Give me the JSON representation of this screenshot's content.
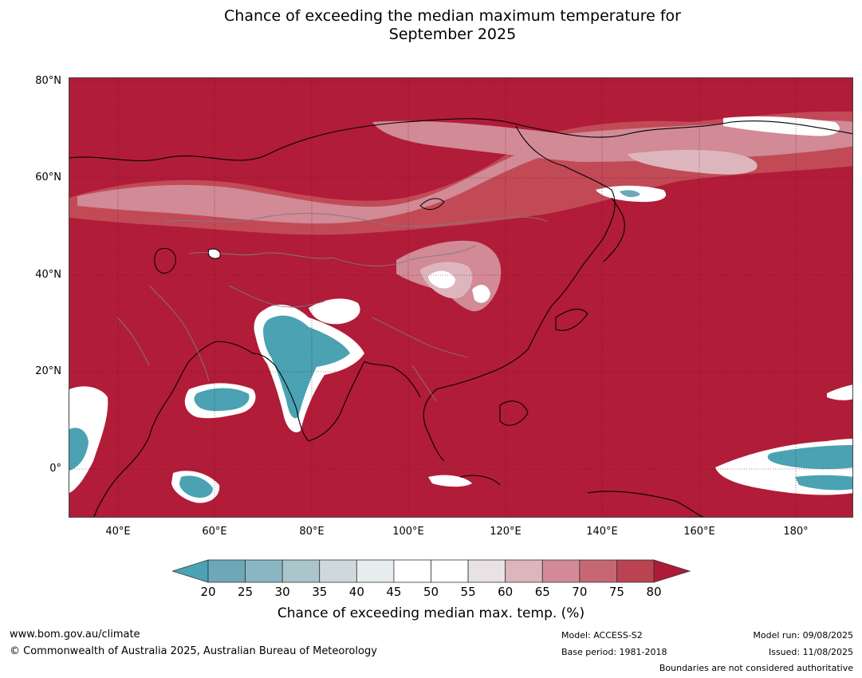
{
  "title_line1": "Chance of exceeding the median maximum temperature for",
  "title_line2": "September 2025",
  "map": {
    "lat_labels": [
      "80°N",
      "60°N",
      "40°N",
      "20°N",
      "0°"
    ],
    "lon_labels": [
      "40°E",
      "60°E",
      "80°E",
      "100°E",
      "120°E",
      "140°E",
      "160°E",
      "180°"
    ],
    "lon_range": [
      30,
      192
    ],
    "lat_range": [
      -10,
      81
    ],
    "background_color": "#b11c39"
  },
  "colorbar": {
    "ticks": [
      "20",
      "25",
      "30",
      "35",
      "40",
      "45",
      "50",
      "55",
      "60",
      "65",
      "70",
      "75",
      "80"
    ],
    "colors": [
      "#6ea8b8",
      "#8ab6c4",
      "#abc5cc",
      "#cfd9dc",
      "#e8eef0",
      "#ffffff",
      "#ffffff",
      "#e8e2e4",
      "#ddb6bd",
      "#d18a96",
      "#c66772",
      "#b94350"
    ],
    "under_color": "#4aa2b3",
    "over_color": "#ae1b38",
    "label": "Chance of exceeding median max. temp. (%)"
  },
  "footer": {
    "url": "www.bom.gov.au/climate",
    "copyright": "© Commonwealth of Australia 2025, Australian Bureau of Meteorology",
    "model": "Model: ACCESS-S2",
    "base_period": "Base period: 1981-2018",
    "model_run": "Model run: 09/08/2025",
    "issued": "Issued: 11/08/2025",
    "disclaimer": "Boundaries are not considered authoritative"
  }
}
